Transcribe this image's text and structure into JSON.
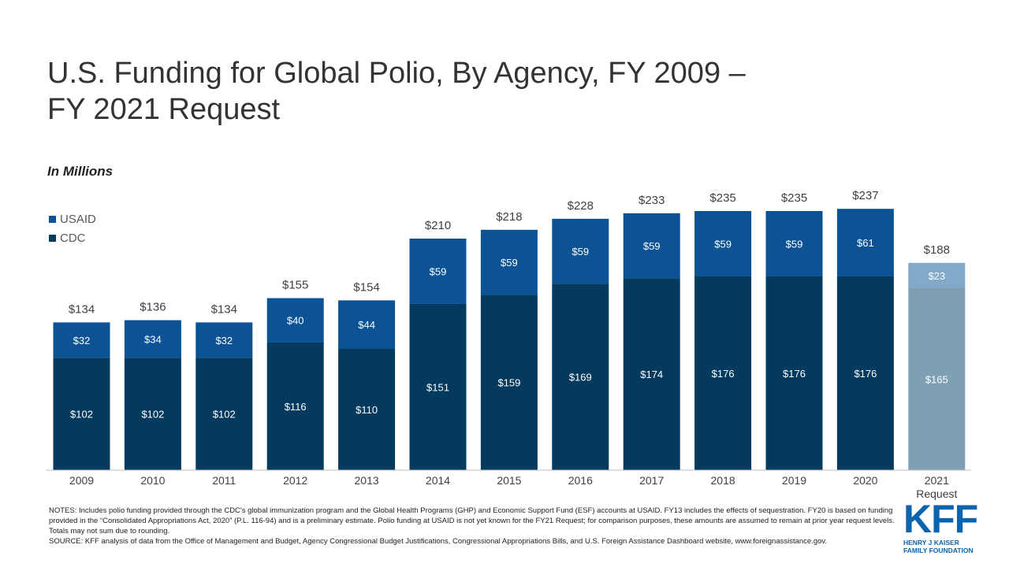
{
  "title_line1": "U.S. Funding for Global Polio, By Agency, FY 2009 –",
  "title_line2": "FY 2021 Request",
  "unit_label": "In Millions",
  "colors": {
    "usaid": "#0b5394",
    "cdc": "#033a5e",
    "usaid_request": "#82a9c8",
    "cdc_request": "#7f9fb2",
    "label_dark": "#404040"
  },
  "chart_data": {
    "type": "bar",
    "stacked": true,
    "title": "U.S. Funding for Global Polio, By Agency, FY 2009 – FY 2021 Request",
    "ylabel": "In Millions",
    "categories": [
      "2009",
      "2010",
      "2011",
      "2012",
      "2013",
      "2014",
      "2015",
      "2016",
      "2017",
      "2018",
      "2019",
      "2020",
      "2021"
    ],
    "last_category_sublabel": "Request",
    "series": [
      {
        "name": "CDC",
        "values": [
          102,
          102,
          102,
          116,
          110,
          151,
          159,
          169,
          174,
          176,
          176,
          176,
          165
        ],
        "labels": [
          "$102",
          "$102",
          "$102",
          "$116",
          "$110",
          "$151",
          "$159",
          "$169",
          "$174",
          "$176",
          "$176",
          "$176",
          "$165"
        ]
      },
      {
        "name": "USAID",
        "values": [
          32,
          34,
          32,
          40,
          44,
          59,
          59,
          59,
          59,
          59,
          59,
          61,
          23
        ],
        "labels": [
          "$32",
          "$34",
          "$32",
          "$40",
          "$44",
          "$59",
          "$59",
          "$59",
          "$59",
          "$59",
          "$59",
          "$61",
          "$23"
        ]
      }
    ],
    "totals": [
      134,
      136,
      134,
      155,
      154,
      210,
      218,
      228,
      233,
      235,
      235,
      237,
      188
    ],
    "total_labels": [
      "$134",
      "$136",
      "$134",
      "$155",
      "$154",
      "$210",
      "$218",
      "$228",
      "$233",
      "$235",
      "$235",
      "$237",
      "$188"
    ],
    "legend": [
      "USAID",
      "CDC"
    ],
    "legend_position": "top-left",
    "ylim": [
      0,
      250
    ],
    "grid": false
  },
  "notes": "NOTES:  Includes polio funding provided through the CDC's global immunization program and the Global Health Programs (GHP) and Economic Support Fund (ESF) accounts at USAID.  FY13 includes the effects of sequestration. FY20 is based on funding provided in the “Consolidated Appropriations Act, 2020” (P.L. 116-94) and is a preliminary estimate. Polio funding at USAID is not yet known for the FY21 Request; for comparison purposes, these amounts are assumed to remain at prior year request levels. Totals may not sum due to rounding.",
  "source": "SOURCE:   KFF analysis of data from the Office of Management and Budget, Agency Congressional Budget Justifications, Congressional Appropriations Bills, and U.S. Foreign Assistance Dashboard website, www.foreignassistance.gov.",
  "logo": {
    "mark": "KFF",
    "line1": "HENRY J KAISER",
    "line2": "FAMILY FOUNDATION"
  }
}
